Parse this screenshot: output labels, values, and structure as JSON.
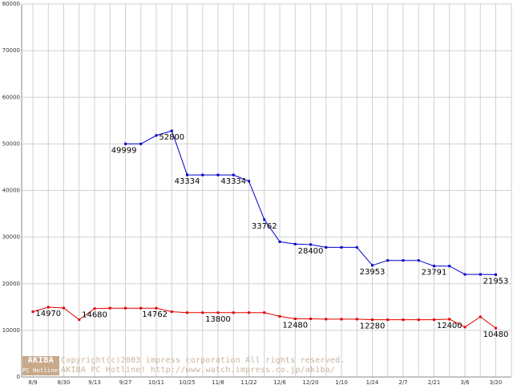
{
  "chart_data": {
    "type": "line",
    "title": "",
    "xlabel": "",
    "ylabel": "",
    "ylim": [
      0,
      80000
    ],
    "y_ticks": [
      0,
      10000,
      20000,
      30000,
      40000,
      50000,
      60000,
      70000,
      80000
    ],
    "x_tick_labels": [
      "8/9",
      "8/30",
      "9/13",
      "9/27",
      "10/11",
      "10/25",
      "11/8",
      "11/22",
      "12/6",
      "12/20",
      "1/10",
      "1/24",
      "2/7",
      "2/21",
      "3/6",
      "3/20"
    ],
    "grid": true,
    "colors": {
      "blue": "#0000cc",
      "red": "#e00000",
      "grid": "#d0d0d0"
    },
    "series": [
      {
        "color": "blue",
        "points": [
          [
            3,
            49999
          ],
          [
            3.5,
            50000
          ],
          [
            4,
            51800
          ],
          [
            4.5,
            52800
          ],
          [
            5,
            43334
          ],
          [
            5.5,
            43334
          ],
          [
            6,
            43334
          ],
          [
            6.5,
            43334
          ],
          [
            7,
            42000
          ],
          [
            7.5,
            33762
          ],
          [
            8,
            29000
          ],
          [
            8.5,
            28500
          ],
          [
            9,
            28400
          ],
          [
            9.5,
            27800
          ],
          [
            10,
            27800
          ],
          [
            10.5,
            27800
          ],
          [
            11,
            23953
          ],
          [
            11.5,
            25000
          ],
          [
            12,
            25000
          ],
          [
            12.5,
            25000
          ],
          [
            13,
            23791
          ],
          [
            13.5,
            23791
          ],
          [
            14,
            22000
          ],
          [
            14.5,
            22000
          ],
          [
            15,
            21953
          ]
        ]
      },
      {
        "color": "red",
        "points": [
          [
            0,
            14000
          ],
          [
            0.5,
            14970
          ],
          [
            1,
            14800
          ],
          [
            1.5,
            12300
          ],
          [
            2,
            14680
          ],
          [
            2.5,
            14762
          ],
          [
            3,
            14762
          ],
          [
            3.5,
            14762
          ],
          [
            4,
            14762
          ],
          [
            4.5,
            14000
          ],
          [
            5,
            13800
          ],
          [
            5.5,
            13800
          ],
          [
            6,
            13800
          ],
          [
            6.5,
            13800
          ],
          [
            7,
            13800
          ],
          [
            7.5,
            13800
          ],
          [
            8,
            13000
          ],
          [
            8.5,
            12480
          ],
          [
            9,
            12480
          ],
          [
            9.5,
            12400
          ],
          [
            10,
            12400
          ],
          [
            10.5,
            12400
          ],
          [
            11,
            12280
          ],
          [
            11.5,
            12280
          ],
          [
            12,
            12280
          ],
          [
            12.5,
            12280
          ],
          [
            13,
            12280
          ],
          [
            13.5,
            12400
          ],
          [
            14,
            10700
          ],
          [
            14.5,
            12900
          ],
          [
            15,
            10480
          ]
        ]
      }
    ],
    "data_labels": [
      {
        "x": 3,
        "y": 49999,
        "text": "49999",
        "pos": "below-left"
      },
      {
        "x": 4.5,
        "y": 52800,
        "text": "52800",
        "pos": "below"
      },
      {
        "x": 5,
        "y": 43334,
        "text": "43334",
        "pos": "below"
      },
      {
        "x": 6.5,
        "y": 43334,
        "text": "43334",
        "pos": "below"
      },
      {
        "x": 7.5,
        "y": 33762,
        "text": "33762",
        "pos": "below"
      },
      {
        "x": 9,
        "y": 28400,
        "text": "28400",
        "pos": "below"
      },
      {
        "x": 11,
        "y": 23953,
        "text": "23953",
        "pos": "below"
      },
      {
        "x": 13,
        "y": 23791,
        "text": "23791",
        "pos": "below"
      },
      {
        "x": 15,
        "y": 21953,
        "text": "21953",
        "pos": "below"
      },
      {
        "x": 0.5,
        "y": 14970,
        "text": "14970",
        "pos": "below"
      },
      {
        "x": 2,
        "y": 14680,
        "text": "14680",
        "pos": "below"
      },
      {
        "x": 4,
        "y": 14762,
        "text": "14762",
        "pos": "below-left"
      },
      {
        "x": 6,
        "y": 13800,
        "text": "13800",
        "pos": "below"
      },
      {
        "x": 8.5,
        "y": 12480,
        "text": "12480",
        "pos": "below"
      },
      {
        "x": 11,
        "y": 12280,
        "text": "12280",
        "pos": "below"
      },
      {
        "x": 13.5,
        "y": 12400,
        "text": "12400",
        "pos": "below"
      },
      {
        "x": 15,
        "y": 10480,
        "text": "10480",
        "pos": "below"
      }
    ]
  },
  "watermark": {
    "logo_top": "AKIBA",
    "logo_bottom": "PC Hotline!",
    "line1": "Copyright(c)2003 impress corporation All rights reserved.",
    "line2": "AKIBA PC Hotline! http://www.watch.impress.co.jp/akiba/"
  }
}
